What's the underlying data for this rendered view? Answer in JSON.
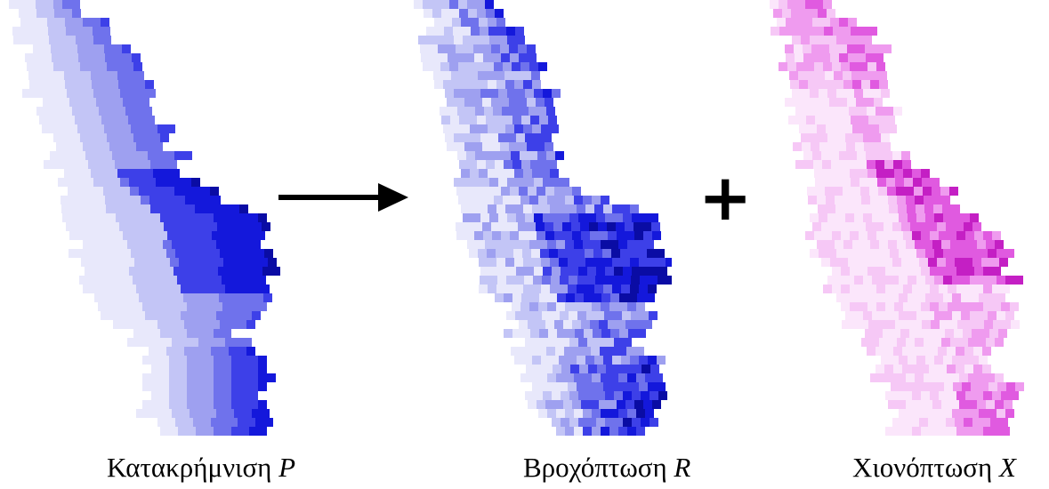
{
  "panels": [
    {
      "id": "precipitation",
      "label": "Κατακρήμνιση",
      "symbol": "P",
      "palette": [
        "#e8e8fb",
        "#c3c5f6",
        "#9ea0f0",
        "#6f72ec",
        "#3d40e8",
        "#1418db",
        "#0a0ca4"
      ]
    },
    {
      "id": "rainfall",
      "label": "Βροχόπτωση",
      "symbol": "R",
      "palette": [
        "#e8e8fb",
        "#c3c5f6",
        "#9ea0f0",
        "#6f72ec",
        "#3d40e8",
        "#1418db",
        "#0a0ca4"
      ]
    },
    {
      "id": "snowfall",
      "label": "Χιονόπτωση",
      "symbol": "X",
      "palette": [
        "#fbe6fb",
        "#f6c8f6",
        "#ef9bef",
        "#e05ae0",
        "#c41fc4",
        "#940894",
        "#640064"
      ]
    }
  ],
  "operators": {
    "arrow": "→",
    "plus": "+"
  }
}
